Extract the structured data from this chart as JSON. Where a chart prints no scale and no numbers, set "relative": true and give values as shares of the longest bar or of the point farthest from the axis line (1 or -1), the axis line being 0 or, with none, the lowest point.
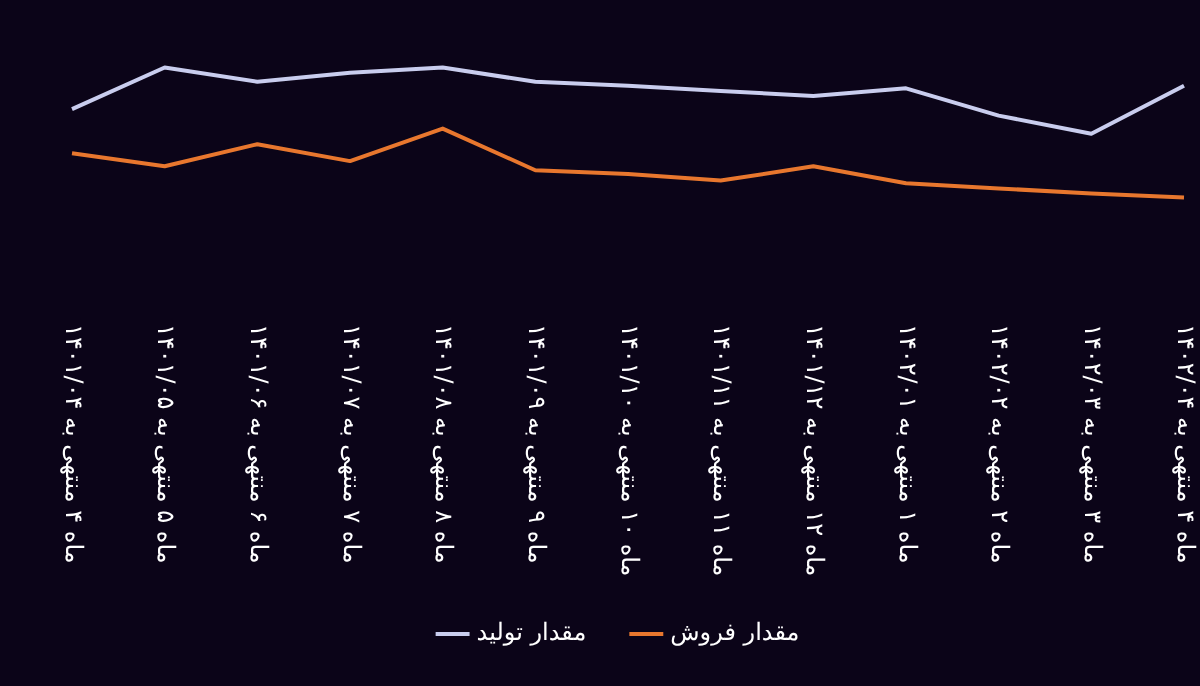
{
  "chart_data": {
    "type": "line",
    "relative": true,
    "categories": [
      "ماه ۴ منتهی به ۱۴۰۱/۰۴",
      "ماه ۵ منتهی به ۱۴۰۱/۰۵",
      "ماه ۶ منتهی به ۱۴۰۱/۰۶",
      "ماه ۷ منتهی به ۱۴۰۱/۰۷",
      "ماه ۸ منتهی به ۱۴۰۱/۰۸",
      "ماه ۹ منتهی به ۱۴۰۱/۰۹",
      "ماه ۱۰ منتهی به ۱۴۰۱/۱۰",
      "ماه ۱۱ منتهی به ۱۴۰۱/۱۱",
      "ماه ۱۲ منتهی به ۱۴۰۱/۱۲",
      "ماه ۱ منتهی به ۱۴۰۲/۰۱",
      "ماه ۲ منتهی به ۱۴۰۲/۰۲",
      "ماه ۳ منتهی به ۱۴۰۲/۰۳",
      "ماه ۴ منتهی به ۱۴۰۲/۰۴"
    ],
    "series": [
      {
        "name": "مقدار تولید",
        "color": "#c9cdee",
        "values": [
          0.68,
          1,
          0.89,
          0.96,
          1,
          0.89,
          0.86,
          0.82,
          0.78,
          0.84,
          0.63,
          0.49,
          0.86
        ]
      },
      {
        "name": "مقدار فروش",
        "color": "#e8772e",
        "values": [
          0.34,
          0.24,
          0.41,
          0.28,
          0.53,
          0.21,
          0.18,
          0.13,
          0.24,
          0.11,
          0.07,
          0.03,
          0
        ]
      }
    ],
    "legend": "bottom",
    "grid": false,
    "marker": "none",
    "line_style": "solid"
  }
}
